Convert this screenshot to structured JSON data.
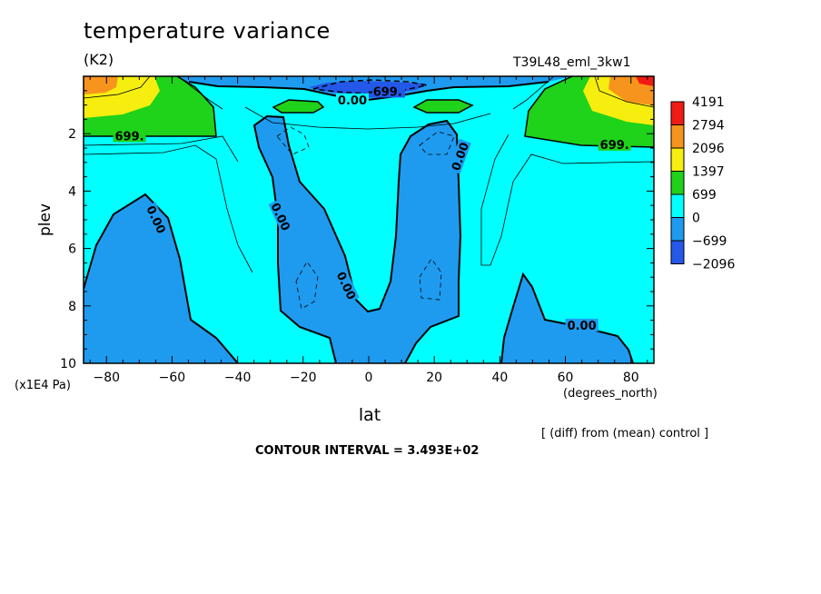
{
  "header": {
    "title": "temperature variance",
    "units": "(K2)",
    "run_name": "T39L48_eml_3kw1"
  },
  "footer": {
    "source": "[ (diff) from (mean) control ]",
    "contour_interval": "CONTOUR INTERVAL = 3.493E+02"
  },
  "chart_data": {
    "type": "contour",
    "xlabel": "lat",
    "xunits": "(degrees_north)",
    "ylabel": "plev",
    "yunits": "(x1E4 Pa)",
    "xlim": [
      -87,
      87
    ],
    "ylim": [
      10,
      0
    ],
    "xticks": [
      -80,
      -60,
      -40,
      -20,
      0,
      20,
      40,
      60,
      80
    ],
    "yticks": [
      2,
      4,
      6,
      8,
      10
    ],
    "levels": [
      {
        "label": "4191",
        "color": "#f21b14"
      },
      {
        "label": "2794",
        "color": "#f7941d"
      },
      {
        "label": "2096",
        "color": "#f5ee0f"
      },
      {
        "label": "1397",
        "color": "#1fd21a"
      },
      {
        "label": "699",
        "color": "#00ffff"
      },
      {
        "label": "0",
        "color": "#1e9bef"
      },
      {
        "label": "-699",
        "color": "#2358e8"
      },
      {
        "label": "-2096",
        "color": ""
      }
    ],
    "contour_labels": [
      {
        "text": "699.",
        "lat": -73,
        "plev": 2.1
      },
      {
        "text": "699.",
        "lat": 75,
        "plev": 2.4
      },
      {
        "text": "-699.",
        "lat": 5,
        "plev": 0.55
      },
      {
        "text": "0.00",
        "lat": -5,
        "plev": 0.85
      },
      {
        "text": "0.00",
        "lat": -65,
        "plev": 5.0
      },
      {
        "text": "0.00",
        "lat": -27,
        "plev": 4.9
      },
      {
        "text": "0.00",
        "lat": -7,
        "plev": 7.3
      },
      {
        "text": "0.00",
        "lat": 28,
        "plev": 2.8
      },
      {
        "text": "0.00",
        "lat": 65,
        "plev": 8.7
      }
    ],
    "colors": {
      "background": "#00ffff",
      "negative": "#1e9bef",
      "strong_negative": "#2358e8",
      "green": "#1fd21a",
      "yellow": "#f5ee0f",
      "orange": "#f7941d",
      "red": "#f21b14"
    }
  }
}
